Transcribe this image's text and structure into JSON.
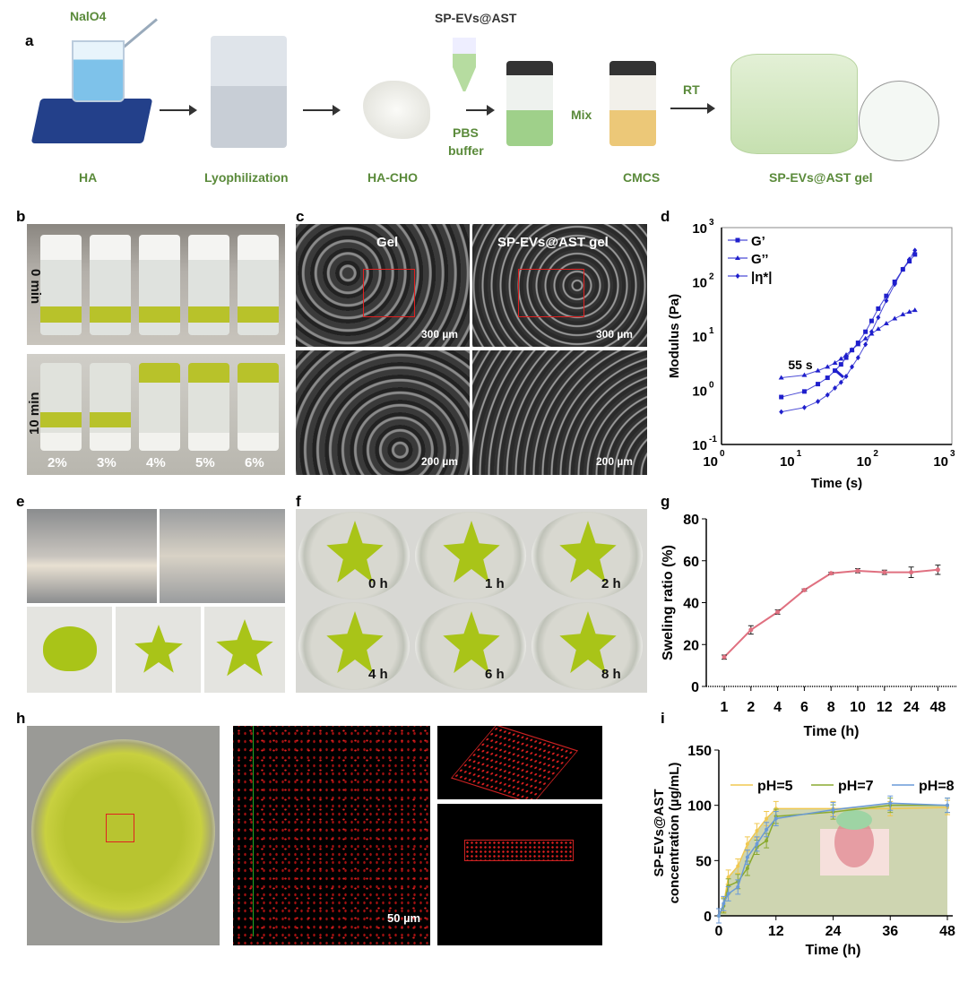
{
  "panel_letters": [
    "a",
    "b",
    "c",
    "d",
    "e",
    "f",
    "g",
    "h",
    "i"
  ],
  "panel_a": {
    "naio4": "NalO4",
    "ha": "HA",
    "lyophilization": "Lyophilization",
    "ha_cho": "HA-CHO",
    "sp_evs_ast": "SP-EVs@AST",
    "pbs": "PBS",
    "buffer": "buffer",
    "mix": "Mix",
    "cmcs": "CMCS",
    "rt": "RT",
    "gel": "SP-EVs@AST gel"
  },
  "panel_b": {
    "top_label": "0 min",
    "bottom_label": "10 min",
    "concentrations": [
      "2%",
      "3%",
      "4%",
      "5%",
      "6%"
    ]
  },
  "panel_c": {
    "left_title": "Gel",
    "right_title": "SP-EVs@AST gel",
    "scale_top": "300 µm",
    "scale_bottom": "200 µm"
  },
  "panel_f": {
    "times": [
      "0 h",
      "1 h",
      "2 h",
      "4 h",
      "6 h",
      "8 h"
    ]
  },
  "panel_h": {
    "scale": "50 µm"
  },
  "colors": {
    "rheology": "#1f1fcc",
    "swelling": "#e07080",
    "ph5": "#f0c850",
    "ph7": "#8aaa30",
    "ph8": "#6a9ad8",
    "fill": "#c9d0a8"
  },
  "chart_data": [
    {
      "type": "line",
      "panel": "d",
      "xlabel": "Time (s)",
      "ylabel": "Modulus (Pa)",
      "xscale": "log",
      "yscale": "log",
      "xlim": [
        1,
        1000
      ],
      "ylim": [
        0.1,
        1000
      ],
      "xticks": [
        "10",
        "10",
        "10",
        "10"
      ],
      "xtick_exp": [
        "0",
        "1",
        "2",
        "3"
      ],
      "yticks": [
        "10",
        "10",
        "10",
        "10",
        "10"
      ],
      "ytick_exp": [
        "-1",
        "0",
        "1",
        "2",
        "3"
      ],
      "annotation": "55 s",
      "legend": "top-left",
      "series": [
        {
          "name": "G’",
          "marker": "square",
          "points": [
            [
              6,
              0.75
            ],
            [
              12,
              0.95
            ],
            [
              18,
              1.3
            ],
            [
              24,
              1.7
            ],
            [
              30,
              2.3
            ],
            [
              36,
              3.0
            ],
            [
              42,
              4.0
            ],
            [
              50,
              5.5
            ],
            [
              60,
              7.5
            ],
            [
              75,
              12
            ],
            [
              90,
              19
            ],
            [
              110,
              32
            ],
            [
              140,
              55
            ],
            [
              180,
              100
            ],
            [
              230,
              170
            ],
            [
              280,
              240
            ],
            [
              330,
              320
            ]
          ]
        },
        {
          "name": "G’’",
          "marker": "triangle",
          "points": [
            [
              6,
              1.7
            ],
            [
              12,
              1.9
            ],
            [
              18,
              2.3
            ],
            [
              24,
              2.7
            ],
            [
              30,
              3.2
            ],
            [
              36,
              3.8
            ],
            [
              42,
              4.5
            ],
            [
              50,
              5.6
            ],
            [
              60,
              7
            ],
            [
              75,
              9
            ],
            [
              90,
              11
            ],
            [
              110,
              13.5
            ],
            [
              140,
              17
            ],
            [
              180,
              21
            ],
            [
              230,
              25
            ],
            [
              280,
              28
            ],
            [
              330,
              30
            ]
          ]
        },
        {
          "name": "|η*|",
          "marker": "diamond",
          "points": [
            [
              6,
              0.4
            ],
            [
              12,
              0.48
            ],
            [
              18,
              0.62
            ],
            [
              24,
              0.82
            ],
            [
              30,
              1.1
            ],
            [
              36,
              1.4
            ],
            [
              42,
              1.8
            ],
            [
              50,
              2.7
            ],
            [
              60,
              4
            ],
            [
              75,
              7
            ],
            [
              90,
              12
            ],
            [
              110,
              22
            ],
            [
              140,
              45
            ],
            [
              180,
              90
            ],
            [
              230,
              170
            ],
            [
              280,
              260
            ],
            [
              330,
              380
            ]
          ]
        }
      ]
    },
    {
      "type": "line",
      "panel": "g",
      "xlabel": "Time (h)",
      "ylabel": "Sweling ratio (%)",
      "ylim": [
        0,
        80
      ],
      "yticks": [
        "0",
        "20",
        "40",
        "60",
        "80"
      ],
      "categories": [
        "1",
        "2",
        "4",
        "6",
        "8",
        "10",
        "12",
        "24",
        "48"
      ],
      "values": [
        14,
        27,
        35.5,
        46,
        54,
        55.2,
        54.5,
        54.5,
        55.7
      ],
      "errors": [
        1,
        2,
        1,
        0.5,
        0.5,
        1,
        1,
        2.5,
        2.2
      ]
    },
    {
      "type": "area",
      "panel": "i",
      "xlabel": "Time (h)",
      "ylabel": "SP-EVs@AST",
      "ylabel2": "concentration (µg/mL)",
      "xlim": [
        0,
        48
      ],
      "ylim": [
        0,
        150
      ],
      "xticks": [
        "0",
        "12",
        "24",
        "36",
        "48"
      ],
      "yticks": [
        "0",
        "50",
        "100",
        "150"
      ],
      "legend": "top",
      "x": [
        0,
        1,
        2,
        4,
        6,
        8,
        10,
        12,
        24,
        36,
        48
      ],
      "series": [
        {
          "name": "pH=5",
          "values": [
            0,
            10,
            35,
            45,
            65,
            77,
            88,
            97,
            97,
            97,
            98
          ]
        },
        {
          "name": "pH=7",
          "values": [
            0,
            9,
            27,
            31,
            43,
            62,
            68,
            90,
            94,
            100,
            100
          ]
        },
        {
          "name": "pH=8",
          "values": [
            0,
            11,
            20,
            26,
            53,
            65,
            78,
            88,
            96,
            102,
            100
          ]
        }
      ]
    }
  ]
}
